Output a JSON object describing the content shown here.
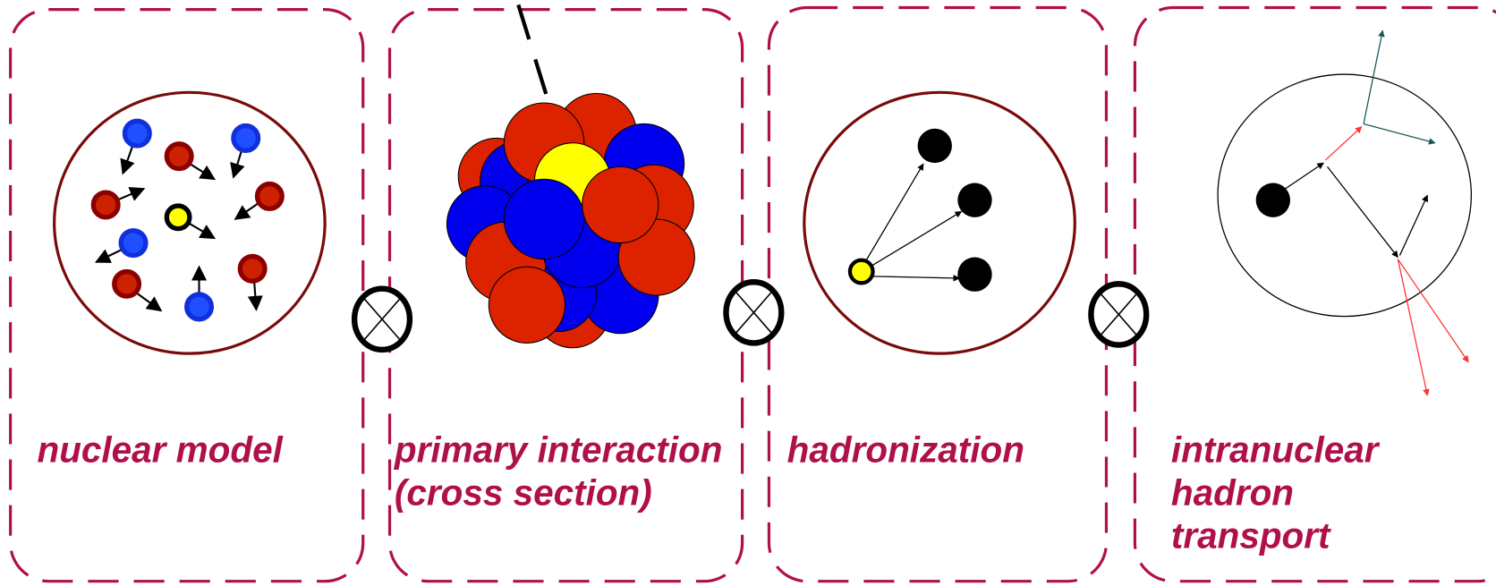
{
  "panels": [
    {
      "label": [
        "nuclear model"
      ]
    },
    {
      "label": [
        "primary interaction",
        "(cross section)"
      ]
    },
    {
      "label": [
        "hadronization"
      ]
    },
    {
      "label": [
        "intranuclear",
        "hadron",
        "transport"
      ]
    }
  ]
}
